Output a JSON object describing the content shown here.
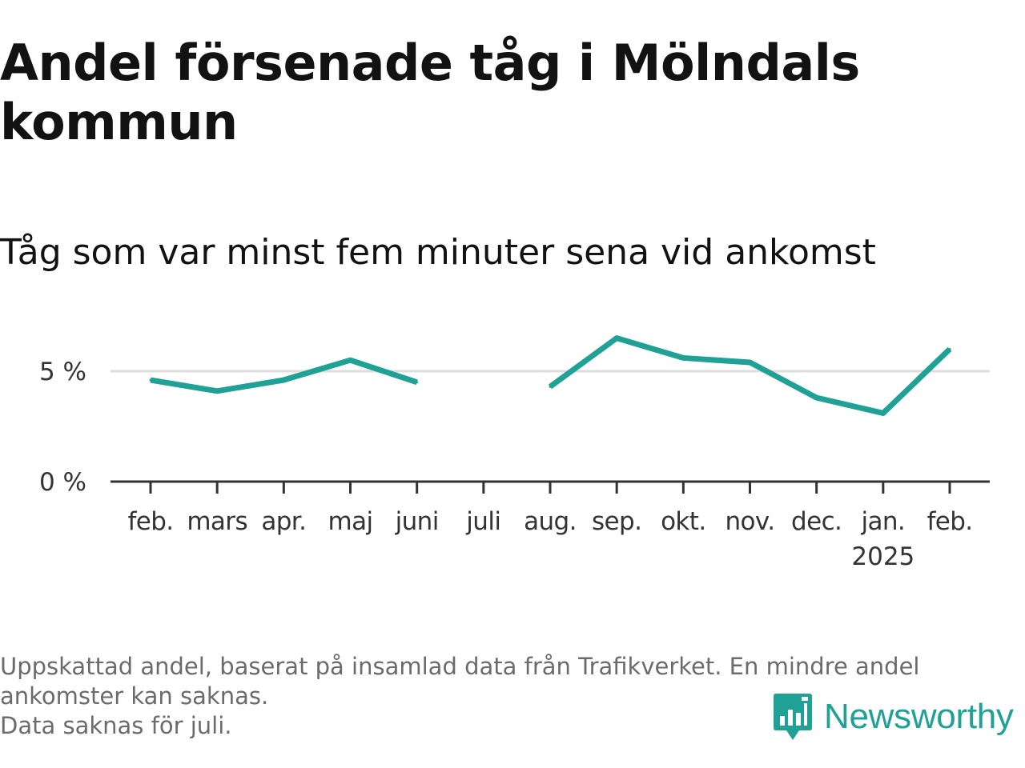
{
  "title": "Andel försenade tåg i Mölndals kommun",
  "subtitle": "Tåg som var minst fem minuter sena vid ankomst",
  "footer": {
    "line1": "Uppskattad andel, baserat på insamlad data från Trafikverket. En mindre andel ankomster kan saknas.",
    "line2": "Data saknas för juli."
  },
  "logo": {
    "text": "Newsworthy"
  },
  "colors": {
    "line": "#1fa196",
    "gridline": "#dddddd",
    "axis": "#333333",
    "logo": "#1fa196"
  },
  "chart_data": {
    "type": "line",
    "categories": [
      "feb.",
      "mars",
      "apr.",
      "maj",
      "juni",
      "juli",
      "aug.",
      "sep.",
      "okt.",
      "nov.",
      "dec.",
      "jan.",
      "feb."
    ],
    "year_label": {
      "category_index": 11,
      "text": "2025"
    },
    "series": [
      {
        "values": [
          4.6,
          4.1,
          4.6,
          5.5,
          4.5,
          null,
          4.3,
          6.5,
          5.6,
          5.4,
          3.8,
          3.1,
          6.0
        ]
      }
    ],
    "yticks": [
      {
        "value": 0,
        "label": "0 %"
      },
      {
        "value": 5,
        "label": "5 %"
      }
    ],
    "ylim": [
      0,
      7
    ],
    "grid": true,
    "xlabel": "",
    "ylabel": ""
  }
}
